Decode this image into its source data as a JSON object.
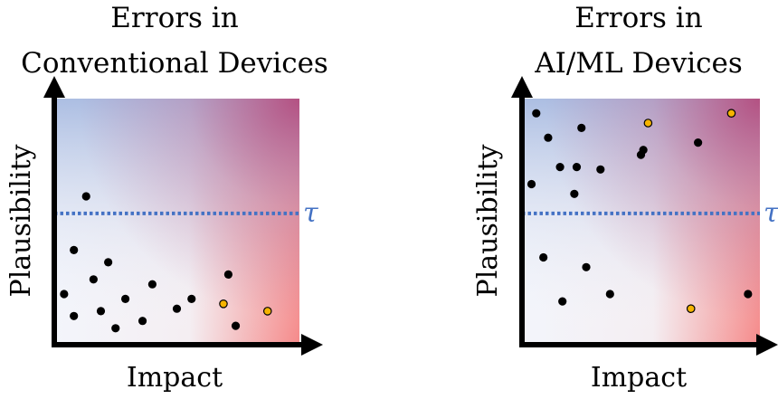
{
  "colors": {
    "bg_low_left": "#f3f5fb",
    "bg_high_left": "#9fb4de",
    "bg_low_right": "#f58a8a",
    "bg_high_right": "#b44c7e",
    "threshold": "#4472c4",
    "normal_point": "#000000",
    "highlight_point": "#f5b400"
  },
  "chart_data": [
    {
      "type": "scatter",
      "title_lines": [
        "Errors in",
        "Conventional Devices"
      ],
      "xlabel": "Impact",
      "ylabel": "Plausibility",
      "xlim": [
        0,
        1
      ],
      "ylim": [
        0,
        1
      ],
      "threshold": {
        "label": "τ",
        "value": 0.53
      },
      "series": [
        {
          "role": "normal",
          "points": [
            {
              "x": 0.13,
              "y": 0.6
            },
            {
              "x": 0.08,
              "y": 0.38
            },
            {
              "x": 0.16,
              "y": 0.26
            },
            {
              "x": 0.22,
              "y": 0.33
            },
            {
              "x": 0.04,
              "y": 0.2
            },
            {
              "x": 0.08,
              "y": 0.11
            },
            {
              "x": 0.19,
              "y": 0.13
            },
            {
              "x": 0.25,
              "y": 0.06
            },
            {
              "x": 0.29,
              "y": 0.18
            },
            {
              "x": 0.36,
              "y": 0.09
            },
            {
              "x": 0.4,
              "y": 0.24
            },
            {
              "x": 0.5,
              "y": 0.14
            },
            {
              "x": 0.56,
              "y": 0.18
            },
            {
              "x": 0.71,
              "y": 0.28
            },
            {
              "x": 0.74,
              "y": 0.07
            }
          ]
        },
        {
          "role": "highlighted",
          "points": [
            {
              "x": 0.69,
              "y": 0.16
            },
            {
              "x": 0.87,
              "y": 0.13
            }
          ]
        }
      ]
    },
    {
      "type": "scatter",
      "title_lines": [
        "Errors in",
        "AI/ML Devices"
      ],
      "xlabel": "Impact",
      "ylabel": "Plausibility",
      "xlim": [
        0,
        1
      ],
      "ylim": [
        0,
        1
      ],
      "threshold": {
        "label": "τ",
        "value": 0.53
      },
      "series": [
        {
          "role": "normal",
          "points": [
            {
              "x": 0.06,
              "y": 0.94
            },
            {
              "x": 0.11,
              "y": 0.84
            },
            {
              "x": 0.25,
              "y": 0.88
            },
            {
              "x": 0.23,
              "y": 0.72
            },
            {
              "x": 0.33,
              "y": 0.71
            },
            {
              "x": 0.51,
              "y": 0.79
            },
            {
              "x": 0.5,
              "y": 0.77
            },
            {
              "x": 0.74,
              "y": 0.82
            },
            {
              "x": 0.04,
              "y": 0.65
            },
            {
              "x": 0.16,
              "y": 0.72
            },
            {
              "x": 0.22,
              "y": 0.61
            },
            {
              "x": 0.09,
              "y": 0.35
            },
            {
              "x": 0.27,
              "y": 0.31
            },
            {
              "x": 0.37,
              "y": 0.2
            },
            {
              "x": 0.17,
              "y": 0.17
            },
            {
              "x": 0.95,
              "y": 0.2
            }
          ]
        },
        {
          "role": "highlighted",
          "points": [
            {
              "x": 0.53,
              "y": 0.9
            },
            {
              "x": 0.88,
              "y": 0.94
            },
            {
              "x": 0.71,
              "y": 0.14
            }
          ]
        }
      ]
    }
  ]
}
